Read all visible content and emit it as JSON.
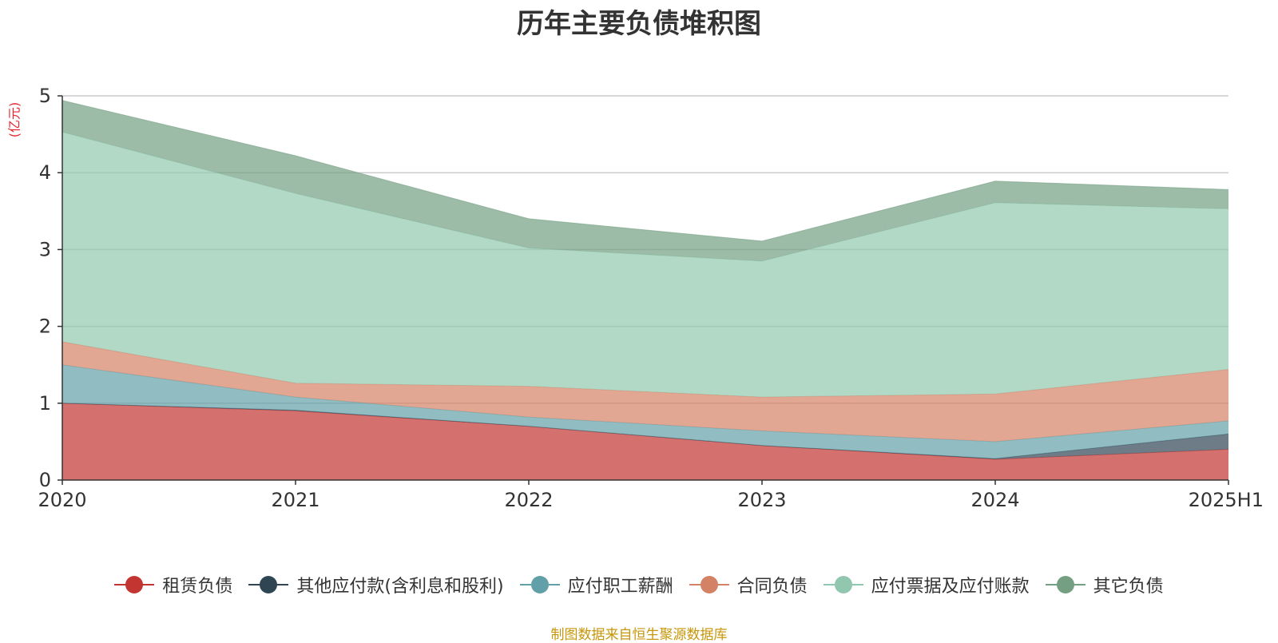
{
  "chart_data": {
    "type": "area",
    "stacked": true,
    "title": "历年主要负债堆积图",
    "ylabel": "(亿元)",
    "xlabel": "",
    "ylim": [
      0,
      5
    ],
    "yticks": [
      0,
      1,
      2,
      3,
      4,
      5
    ],
    "grid": true,
    "legend_position": "bottom",
    "categories": [
      "2020",
      "2021",
      "2022",
      "2023",
      "2024",
      "2025H1"
    ],
    "series": [
      {
        "name": "租赁负债",
        "color": "#c23531",
        "values": [
          1.0,
          0.9,
          0.7,
          0.45,
          0.27,
          0.4
        ]
      },
      {
        "name": "其他应付款(含利息和股利)",
        "color": "#2f4554",
        "values": [
          0.0,
          0.01,
          0.0,
          0.0,
          0.01,
          0.2
        ]
      },
      {
        "name": "应付职工薪酬",
        "color": "#61a0a8",
        "values": [
          0.5,
          0.17,
          0.12,
          0.19,
          0.22,
          0.17
        ]
      },
      {
        "name": "合同负债",
        "color": "#d48265",
        "values": [
          0.3,
          0.18,
          0.4,
          0.44,
          0.62,
          0.67
        ]
      },
      {
        "name": "应付票据及应付账款",
        "color": "#91c7ae",
        "values": [
          2.73,
          2.47,
          1.8,
          1.77,
          2.49,
          2.09
        ]
      },
      {
        "name": "其它负债",
        "color": "#749f83",
        "values": [
          0.41,
          0.49,
          0.38,
          0.26,
          0.28,
          0.25
        ]
      }
    ]
  },
  "source_note": "制图数据来自恒生聚源数据库"
}
